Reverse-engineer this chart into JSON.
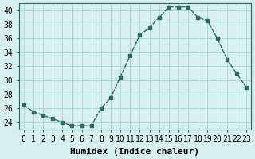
{
  "x": [
    0,
    1,
    2,
    3,
    4,
    5,
    6,
    7,
    8,
    9,
    10,
    11,
    12,
    13,
    14,
    15,
    16,
    17,
    18,
    19,
    20,
    21,
    22,
    23
  ],
  "y": [
    26.5,
    25.5,
    25.0,
    24.5,
    24.0,
    23.5,
    23.5,
    23.5,
    26.0,
    27.5,
    30.5,
    33.5,
    36.5,
    37.5,
    39.0,
    40.5,
    40.5,
    40.5,
    39.0,
    38.5,
    36.0,
    33.0,
    31.0,
    29.0
  ],
  "line_color": "#2d6b5e",
  "bg_color": "#d6f0ee",
  "grid_color": "#b0d8d8",
  "xlabel": "Humidex (Indice chaleur)",
  "ylabel_ticks": [
    24,
    26,
    28,
    30,
    32,
    34,
    36,
    38,
    40
  ],
  "xlim": [
    -0.5,
    23.5
  ],
  "ylim": [
    23,
    41
  ],
  "title_fontsize": 9,
  "axis_fontsize": 8,
  "tick_fontsize": 7
}
